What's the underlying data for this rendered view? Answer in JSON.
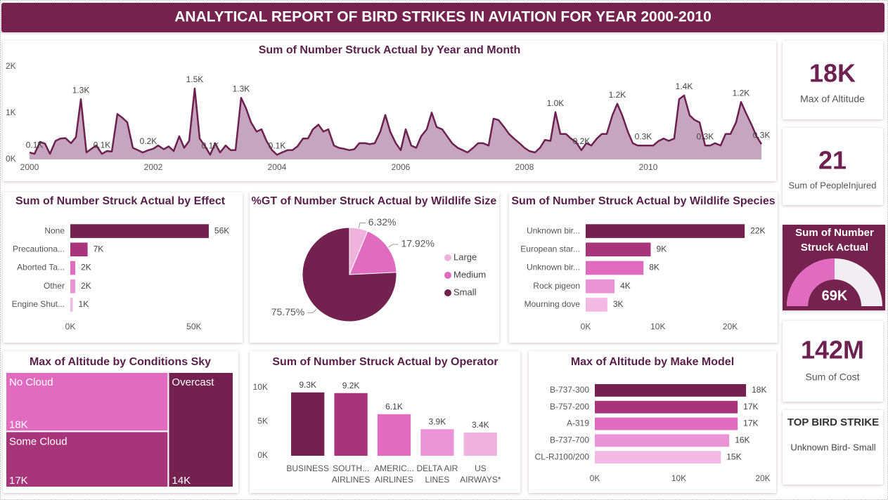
{
  "title": "ANALYTICAL REPORT OF BIRD STRIKES IN AVIATION FOR YEAR 2000-2010",
  "cards": [
    {
      "value": "18K",
      "label": "Max of Altitude"
    },
    {
      "value": "21",
      "label": "Sum of PeopleInjured"
    },
    {
      "value": "142M",
      "label": "Sum of Cost"
    }
  ],
  "top_bird_strike": {
    "title": "TOP BIRD STRIKE",
    "text": "Unknown Bird- Small"
  },
  "chart_data": [
    {
      "type": "line",
      "title": "Sum of Number Struck Actual by Year and Month",
      "x": [
        2000.0,
        2000.08,
        2000.17,
        2000.25,
        2000.33,
        2000.42,
        2000.5,
        2000.58,
        2000.67,
        2000.75,
        2000.83,
        2000.92,
        2001.0,
        2001.08,
        2001.17,
        2001.25,
        2001.33,
        2001.42,
        2001.5,
        2001.58,
        2001.67,
        2001.75,
        2001.83,
        2001.92,
        2002.0,
        2002.08,
        2002.17,
        2002.25,
        2002.33,
        2002.42,
        2002.5,
        2002.58,
        2002.67,
        2002.75,
        2002.83,
        2002.92,
        2003.0,
        2003.08,
        2003.17,
        2003.25,
        2003.33,
        2003.42,
        2003.5,
        2003.58,
        2003.67,
        2003.75,
        2003.83,
        2003.92,
        2004.0,
        2004.08,
        2004.17,
        2004.25,
        2004.33,
        2004.42,
        2004.5,
        2004.58,
        2004.67,
        2004.75,
        2004.83,
        2004.92,
        2005.0,
        2005.08,
        2005.17,
        2005.25,
        2005.33,
        2005.42,
        2005.5,
        2005.58,
        2005.67,
        2005.75,
        2005.83,
        2005.92,
        2006.0,
        2006.08,
        2006.17,
        2006.25,
        2006.33,
        2006.42,
        2006.5,
        2006.58,
        2006.67,
        2006.75,
        2006.83,
        2006.92,
        2007.0,
        2007.08,
        2007.17,
        2007.25,
        2007.33,
        2007.42,
        2007.5,
        2007.58,
        2007.67,
        2007.75,
        2007.83,
        2007.92,
        2008.0,
        2008.08,
        2008.17,
        2008.25,
        2008.33,
        2008.42,
        2008.5,
        2008.58,
        2008.67,
        2008.75,
        2008.83,
        2008.92,
        2009.0,
        2009.08,
        2009.17,
        2009.25,
        2009.33,
        2009.42,
        2009.5,
        2009.58,
        2009.67,
        2009.75,
        2009.83,
        2009.92,
        2010.0,
        2010.08,
        2010.17,
        2010.25,
        2010.33,
        2010.42,
        2010.5,
        2010.58,
        2010.67,
        2010.75,
        2010.83,
        2010.92,
        2011.0,
        2011.08,
        2011.17,
        2011.25,
        2011.33,
        2011.42,
        2011.5,
        2011.58,
        2011.67,
        2011.75,
        2011.83
      ],
      "values": [
        150,
        120,
        380,
        340,
        120,
        400,
        450,
        460,
        350,
        480,
        1300,
        150,
        230,
        300,
        120,
        180,
        170,
        980,
        900,
        800,
        250,
        200,
        150,
        200,
        230,
        300,
        220,
        280,
        180,
        500,
        250,
        400,
        1530,
        450,
        300,
        100,
        350,
        150,
        300,
        200,
        200,
        1330,
        1100,
        800,
        600,
        650,
        400,
        200,
        100,
        150,
        200,
        200,
        280,
        450,
        450,
        650,
        750,
        600,
        650,
        300,
        250,
        230,
        200,
        220,
        350,
        350,
        330,
        350,
        600,
        960,
        600,
        350,
        200,
        650,
        300,
        250,
        500,
        650,
        1010,
        700,
        650,
        500,
        350,
        250,
        200,
        150,
        250,
        350,
        350,
        300,
        880,
        850,
        700,
        550,
        450,
        350,
        250,
        180,
        150,
        250,
        420,
        400,
        1020,
        550,
        550,
        450,
        380,
        200,
        350,
        300,
        450,
        550,
        550,
        950,
        1200,
        950,
        600,
        350,
        300,
        300,
        300,
        300,
        400,
        450,
        400,
        450,
        1300,
        1380,
        950,
        850,
        800,
        300,
        300,
        350,
        300,
        550,
        550,
        800,
        1240,
        1000,
        750,
        500,
        330
      ],
      "value_labels": [
        null,
        "0.1K",
        null,
        null,
        null,
        null,
        null,
        null,
        null,
        null,
        "1.3K",
        null,
        null,
        null,
        "0.1K",
        null,
        null,
        null,
        null,
        null,
        null,
        null,
        null,
        "0.2K",
        null,
        null,
        null,
        null,
        null,
        null,
        null,
        null,
        "1.5K",
        null,
        null,
        "0.1K",
        null,
        null,
        null,
        null,
        null,
        "1.3K",
        null,
        null,
        null,
        null,
        null,
        null,
        "0.1K",
        null,
        null,
        null,
        null,
        null,
        null,
        null,
        null,
        null,
        null,
        null,
        null,
        null,
        null,
        null,
        null,
        null,
        null,
        null,
        null,
        null,
        null,
        null,
        null,
        null,
        null,
        null,
        null,
        null,
        null,
        null,
        null,
        null,
        null,
        null,
        null,
        null,
        null,
        null,
        null,
        null,
        null,
        null,
        null,
        null,
        null,
        null,
        null,
        null,
        null,
        null,
        null,
        null,
        "1.0K",
        null,
        null,
        null,
        null,
        "0.2K",
        null,
        null,
        null,
        null,
        null,
        null,
        "1.2K",
        null,
        null,
        null,
        null,
        "0.3K",
        null,
        null,
        null,
        null,
        null,
        null,
        null,
        "1.4K",
        null,
        null,
        null,
        "0.3K",
        null,
        null,
        null,
        null,
        null,
        null,
        "1.2K",
        null,
        null,
        null,
        "0.3K"
      ],
      "color": "#6e2150",
      "fill": "#c6a5be",
      "xlim": [
        2000,
        2011.83
      ],
      "xticks": [
        2000,
        2002,
        2004,
        2006,
        2008,
        2010
      ],
      "ylim": [
        0,
        2000
      ],
      "yticks": [
        {
          "value": 0,
          "label": "0K"
        },
        {
          "value": 1000,
          "label": "1K"
        },
        {
          "value": 2000,
          "label": "2K"
        }
      ]
    },
    {
      "type": "bar",
      "orientation": "horizontal",
      "title": "Sum of Number Struck Actual by Effect",
      "categories": [
        "None",
        "Precautiona...",
        "Aborted Ta...",
        "Other",
        "Engine Shut..."
      ],
      "values": [
        56000,
        7000,
        2000,
        2000,
        1000
      ],
      "value_labels": [
        "56K",
        "7K",
        "2K",
        "2K",
        "1K"
      ],
      "colors": [
        "#74214f",
        "#a8357a",
        "#e06bbf",
        "#ea94d5",
        "#f2b9e2"
      ],
      "xlim": [
        0,
        60000
      ],
      "xticks": [
        {
          "value": 0,
          "label": "0K"
        },
        {
          "value": 50000,
          "label": "50K"
        }
      ]
    },
    {
      "type": "pie",
      "title": "%GT of Number Struck Actual by Wildlife Size",
      "categories": [
        "Large",
        "Medium",
        "Small"
      ],
      "values": [
        6.32,
        17.92,
        75.75
      ],
      "value_labels": [
        "6.32%",
        "17.92%",
        "75.75%"
      ],
      "colors": [
        "#f0b3dd",
        "#e16bbf",
        "#74214f"
      ],
      "legend": "right"
    },
    {
      "type": "bar",
      "orientation": "horizontal",
      "title": "Sum of Number Struck Actual by Wildlife Species",
      "categories": [
        "Unknown bir...",
        "European star...",
        "Unknown bir...",
        "Rock pigeon",
        "Mourning dove"
      ],
      "values": [
        22000,
        9000,
        8000,
        4000,
        3000
      ],
      "value_labels": [
        "22K",
        "9K",
        "8K",
        "4K",
        "3K"
      ],
      "colors": [
        "#74214f",
        "#a8357a",
        "#e06bbf",
        "#ea94d5",
        "#f2b9e2"
      ],
      "xlim": [
        0,
        25000
      ],
      "xticks": [
        {
          "value": 0,
          "label": "0K"
        },
        {
          "value": 10000,
          "label": "10K"
        },
        {
          "value": 20000,
          "label": "20K"
        }
      ]
    },
    {
      "type": "treemap",
      "title": "Max of Altitude by Conditions Sky",
      "categories": [
        "No Cloud",
        "Some Cloud",
        "Overcast"
      ],
      "values": [
        18000,
        17000,
        14000
      ],
      "value_labels": [
        "18K",
        "17K",
        "14K"
      ],
      "colors": [
        "#e16bbf",
        "#a8357a",
        "#74214f"
      ]
    },
    {
      "type": "bar",
      "orientation": "vertical",
      "title": "Sum of Number Struck Actual by Operator",
      "categories": [
        "BUSINESS",
        "SOUTH... AIRLINES",
        "AMERIC... AIRLINES",
        "DELTA AIR LINES",
        "US AIRWAYS*"
      ],
      "values": [
        9300,
        9200,
        6100,
        3900,
        3400
      ],
      "value_labels": [
        "9.3K",
        "9.2K",
        "6.1K",
        "3.9K",
        "3.4K"
      ],
      "colors": [
        "#74214f",
        "#a8357a",
        "#e16bbf",
        "#eb94d6",
        "#f0b3dd"
      ],
      "ylim": [
        0,
        10000
      ],
      "yticks": [
        {
          "value": 0,
          "label": "0K"
        },
        {
          "value": 5000,
          "label": "5K"
        },
        {
          "value": 10000,
          "label": "10K"
        }
      ]
    },
    {
      "type": "bar",
      "orientation": "horizontal",
      "title": "Max of Altitude by Make Model",
      "categories": [
        "B-737-300",
        "B-757-200",
        "A-319",
        "B-737-700",
        "CL-RJ100/200"
      ],
      "values": [
        18000,
        17000,
        17000,
        16000,
        15000
      ],
      "value_labels": [
        "18K",
        "17K",
        "17K",
        "16K",
        "15K"
      ],
      "colors": [
        "#74214f",
        "#a8357a",
        "#e06bbf",
        "#ea94d5",
        "#f2b9e2"
      ],
      "xlim": [
        0,
        20000
      ],
      "xticks": [
        {
          "value": 0,
          "label": "0K"
        },
        {
          "value": 10000,
          "label": "10K"
        },
        {
          "value": 20000,
          "label": "20K"
        }
      ]
    },
    {
      "type": "gauge",
      "title": "Sum of Number Struck Actual",
      "values": [
        69000
      ],
      "value_labels": [
        "69K"
      ],
      "ylim": [
        0,
        138000
      ],
      "color": "#e16bbf"
    }
  ]
}
